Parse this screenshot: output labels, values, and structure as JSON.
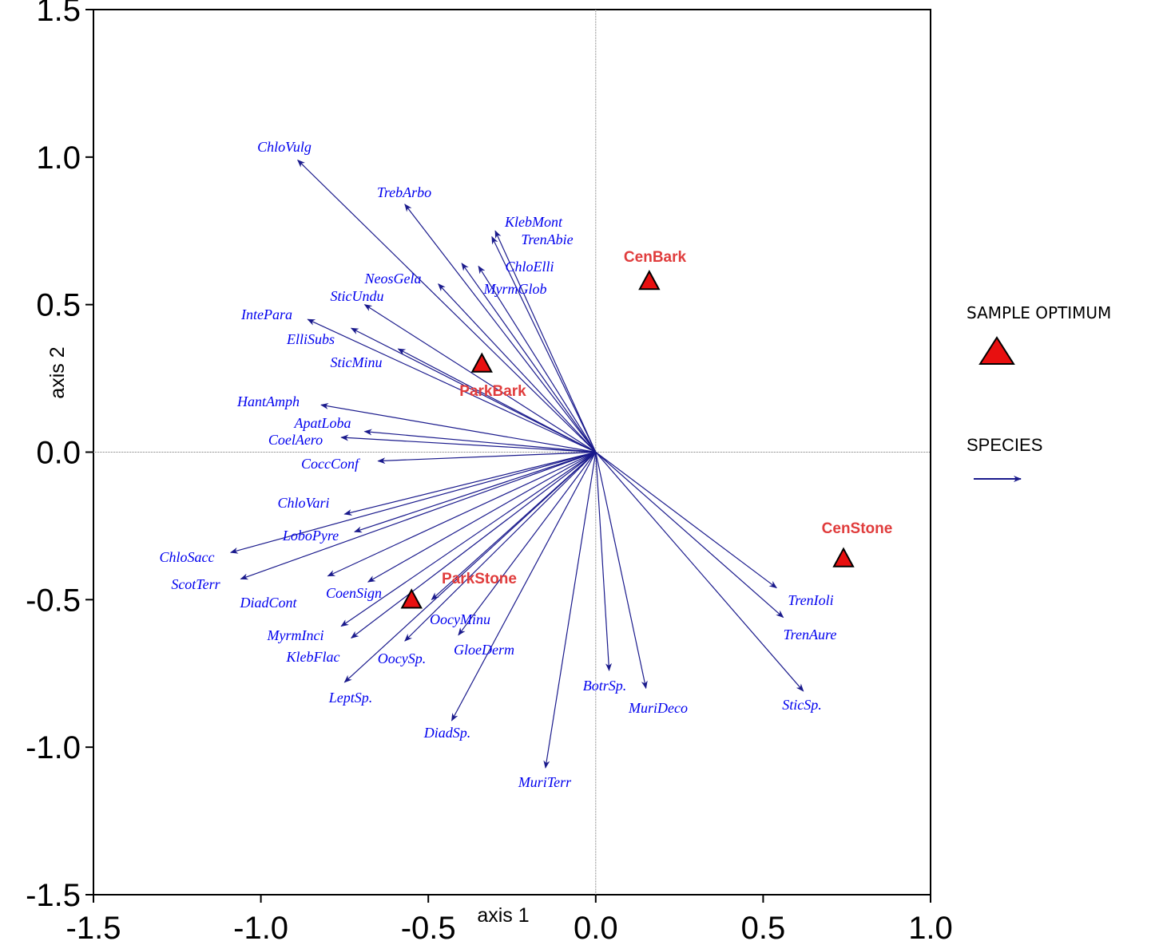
{
  "chart_data": {
    "type": "scatter",
    "xlabel": "axis 1",
    "ylabel": "axis 2",
    "xlim": [
      -1.5,
      1.0
    ],
    "ylim": [
      -1.5,
      1.5
    ],
    "xticks": [
      "-1.5",
      "-1.0",
      "-0.5",
      "0.0",
      "0.5",
      "1.0"
    ],
    "yticks": [
      "1.5",
      "1.0",
      "0.5",
      "0.0",
      "-0.5",
      "-1.0",
      "-1.5"
    ],
    "colors": {
      "species": "#1a1a8c",
      "species_label": "#0000ee",
      "sample": "#e81010",
      "sample_label": "#e03c3c"
    },
    "samples": [
      {
        "name": "CenBark",
        "x": 0.16,
        "y": 0.58
      },
      {
        "name": "ParkBark",
        "x": -0.34,
        "y": 0.3
      },
      {
        "name": "ParkStone",
        "x": -0.55,
        "y": -0.5
      },
      {
        "name": "CenStone",
        "x": 0.74,
        "y": -0.36
      }
    ],
    "species": [
      {
        "name": "ChloVulg",
        "x": -0.89,
        "y": 0.99
      },
      {
        "name": "TrebArbo",
        "x": -0.57,
        "y": 0.84
      },
      {
        "name": "KlebMont",
        "x": -0.3,
        "y": 0.75
      },
      {
        "name": "TrenAbie",
        "x": -0.31,
        "y": 0.73
      },
      {
        "name": "ChloElli",
        "x": -0.35,
        "y": 0.63
      },
      {
        "name": "MyrmGlob",
        "x": -0.4,
        "y": 0.64
      },
      {
        "name": "NeosGela",
        "x": -0.47,
        "y": 0.57
      },
      {
        "name": "SticUndu",
        "x": -0.69,
        "y": 0.5
      },
      {
        "name": "IntePara",
        "x": -0.86,
        "y": 0.45
      },
      {
        "name": "ElliSubs",
        "x": -0.73,
        "y": 0.42
      },
      {
        "name": "SticMinu",
        "x": -0.59,
        "y": 0.35
      },
      {
        "name": "HantAmph",
        "x": -0.82,
        "y": 0.16
      },
      {
        "name": "ApatLoba",
        "x": -0.69,
        "y": 0.07
      },
      {
        "name": "CoelAero",
        "x": -0.76,
        "y": 0.05
      },
      {
        "name": "CoccConf",
        "x": -0.65,
        "y": -0.03
      },
      {
        "name": "ChloVari",
        "x": -0.75,
        "y": -0.21
      },
      {
        "name": "LoboPyre",
        "x": -0.72,
        "y": -0.27
      },
      {
        "name": "ChloSacc",
        "x": -1.09,
        "y": -0.34
      },
      {
        "name": "ScotTerr",
        "x": -1.06,
        "y": -0.43
      },
      {
        "name": "DiadCont",
        "x": -0.8,
        "y": -0.42
      },
      {
        "name": "CoenSign",
        "x": -0.68,
        "y": -0.44
      },
      {
        "name": "OocyMinu",
        "x": -0.49,
        "y": -0.5
      },
      {
        "name": "MyrmInci",
        "x": -0.76,
        "y": -0.59
      },
      {
        "name": "KlebFlac",
        "x": -0.73,
        "y": -0.63
      },
      {
        "name": "OocySp.",
        "x": -0.57,
        "y": -0.64
      },
      {
        "name": "GloeDerm",
        "x": -0.41,
        "y": -0.62
      },
      {
        "name": "LeptSp.",
        "x": -0.75,
        "y": -0.78
      },
      {
        "name": "DiadSp.",
        "x": -0.43,
        "y": -0.91
      },
      {
        "name": "MuriTerr",
        "x": -0.15,
        "y": -1.07
      },
      {
        "name": "BotrSp.",
        "x": 0.04,
        "y": -0.74
      },
      {
        "name": "MuriDeco",
        "x": 0.15,
        "y": -0.8
      },
      {
        "name": "TrenIoli",
        "x": 0.54,
        "y": -0.46
      },
      {
        "name": "TrenAure",
        "x": 0.56,
        "y": -0.56
      },
      {
        "name": "SticSp.",
        "x": 0.62,
        "y": -0.81
      }
    ]
  },
  "legend": {
    "sample_optimum": "SAMPLE OPTIMUM",
    "species": "SPECIES"
  }
}
